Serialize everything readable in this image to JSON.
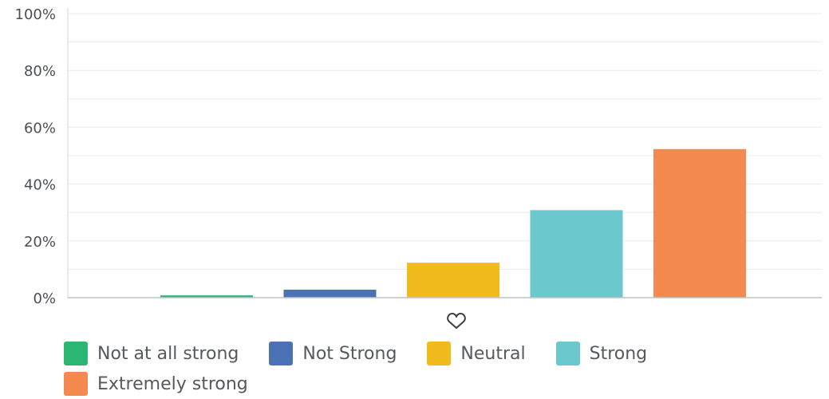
{
  "chart_data": {
    "type": "bar",
    "categories": [
      "Not at all strong",
      "Not Strong",
      "Neutral",
      "Strong",
      "Extremely strong"
    ],
    "values": [
      0.8,
      2.8,
      12.3,
      30.8,
      52.3
    ],
    "colors": [
      "#2bb673",
      "#4a72b5",
      "#f2bb1d",
      "#6bc8cc",
      "#f58a50"
    ],
    "ylim": [
      0,
      100
    ],
    "yticks": [
      0,
      20,
      40,
      60,
      80,
      100
    ],
    "ytick_labels": [
      "0%",
      "20%",
      "40%",
      "60%",
      "80%",
      "100%"
    ],
    "grid": true,
    "legend_position": "bottom"
  },
  "legend": {
    "items": [
      {
        "label": "Not at all strong",
        "color": "#2bb673"
      },
      {
        "label": "Not Strong",
        "color": "#4a72b5"
      },
      {
        "label": "Neutral",
        "color": "#f2bb1d"
      },
      {
        "label": "Strong",
        "color": "#6bc8cc"
      },
      {
        "label": "Extremely strong",
        "color": "#f58a50"
      }
    ]
  },
  "icons": {
    "toggle": "heart-icon"
  }
}
